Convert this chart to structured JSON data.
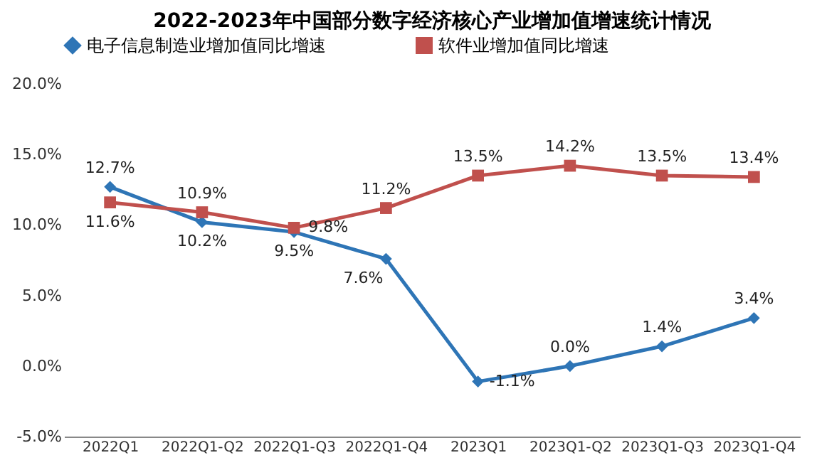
{
  "chart_data": {
    "type": "line",
    "title": "2022-2023年中国部分数字经济核心产业增加值增速统计情况",
    "categories": [
      "2022Q1",
      "2022Q1-Q2",
      "2022Q1-Q3",
      "2022Q1-Q4",
      "2023Q1",
      "2023Q1-Q2",
      "2023Q1-Q3",
      "2023Q1-Q4"
    ],
    "series": [
      {
        "name": "电子信息制造业增加值同比增速",
        "color": "#2e75b6",
        "marker": "diamond",
        "values": [
          12.7,
          10.2,
          9.5,
          7.6,
          -1.1,
          0.0,
          1.4,
          3.4
        ],
        "value_labels": [
          "12.7%",
          "10.2%",
          "9.5%",
          "7.6%",
          "-1.1%",
          "0.0%",
          "1.4%",
          "3.4%"
        ]
      },
      {
        "name": "软件业增加值同比增速",
        "color": "#c0504d",
        "marker": "square",
        "values": [
          11.6,
          10.9,
          9.8,
          11.2,
          13.5,
          14.2,
          13.5,
          13.4
        ],
        "value_labels": [
          "11.6%",
          "10.9%",
          "9.8%",
          "11.2%",
          "13.5%",
          "14.2%",
          "13.5%",
          "13.4%"
        ]
      }
    ],
    "ylim": [
      -5,
      20
    ],
    "yticks": [
      {
        "value": -5,
        "label": "-5.0%"
      },
      {
        "value": 0,
        "label": "0.0%"
      },
      {
        "value": 5,
        "label": "5.0%"
      },
      {
        "value": 10,
        "label": "10.0%"
      },
      {
        "value": 15,
        "label": "15.0%"
      },
      {
        "value": 20,
        "label": "20.0%"
      }
    ],
    "grid": false,
    "legend": "top",
    "line_style": "solid"
  }
}
